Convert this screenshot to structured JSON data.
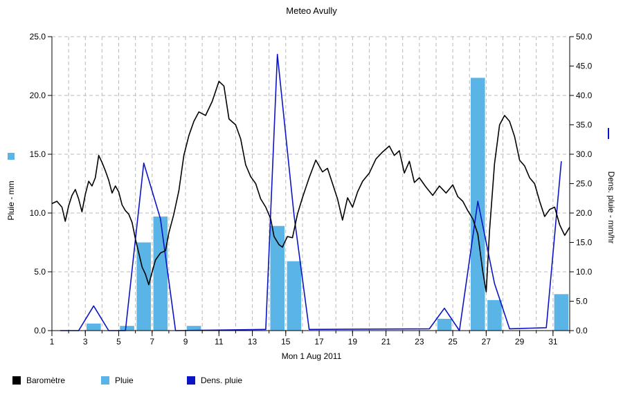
{
  "chart_data": {
    "type": "bar",
    "title": "Meteo  Avully",
    "xlabel": "Mon 1 Aug 2011",
    "ylabel": "Pluie - mm",
    "y2label": "Dens. pluie - mm/hr",
    "xlim": [
      1,
      32
    ],
    "ylim": [
      0,
      25
    ],
    "y2lim": [
      0,
      50
    ],
    "x_ticks": [
      1,
      3,
      5,
      7,
      9,
      11,
      13,
      15,
      17,
      19,
      21,
      23,
      25,
      27,
      29,
      31
    ],
    "y_ticks": [
      "0.0",
      "5.0",
      "10.0",
      "15.0",
      "20.0",
      "25.0"
    ],
    "y2_ticks": [
      "0.0",
      "5.0",
      "10.0",
      "15.0",
      "20.0",
      "25.0",
      "30.0",
      "35.0",
      "40.0",
      "45.0",
      "50.0"
    ],
    "grid": true,
    "legend_position": "bottom-left",
    "series": [
      {
        "name": "Baromètre",
        "kind": "line",
        "axis": "left",
        "color": "#000000",
        "x": [
          1.0,
          1.3,
          1.6,
          1.8,
          2.0,
          2.2,
          2.4,
          2.6,
          2.8,
          3.0,
          3.2,
          3.4,
          3.6,
          3.8,
          4.0,
          4.2,
          4.4,
          4.6,
          4.8,
          5.0,
          5.2,
          5.4,
          5.6,
          5.8,
          6.0,
          6.2,
          6.4,
          6.6,
          6.8,
          7.0,
          7.2,
          7.5,
          7.8,
          8.0,
          8.3,
          8.6,
          8.9,
          9.2,
          9.5,
          9.8,
          10.2,
          10.6,
          11.0,
          11.3,
          11.6,
          12.0,
          12.3,
          12.6,
          12.9,
          13.2,
          13.5,
          13.8,
          14.1,
          14.3,
          14.6,
          14.8,
          15.1,
          15.4,
          15.7,
          16.0,
          16.4,
          16.8,
          17.2,
          17.5,
          17.8,
          18.1,
          18.4,
          18.7,
          19.0,
          19.3,
          19.6,
          20.0,
          20.4,
          20.8,
          21.2,
          21.5,
          21.8,
          22.1,
          22.4,
          22.7,
          23.0,
          23.4,
          23.8,
          24.2,
          24.6,
          25.0,
          25.3,
          25.6,
          25.9,
          26.2,
          26.5,
          26.8,
          27.0,
          27.2,
          27.5,
          27.8,
          28.1,
          28.4,
          28.7,
          29.0,
          29.3,
          29.6,
          29.9,
          30.2,
          30.5,
          30.8,
          31.1,
          31.4,
          31.7,
          32.0
        ],
        "values": [
          10.8,
          11.0,
          10.5,
          9.3,
          10.6,
          11.5,
          12.0,
          11.2,
          10.1,
          11.6,
          12.7,
          12.3,
          13.0,
          14.9,
          14.3,
          13.6,
          12.8,
          11.7,
          12.3,
          11.8,
          10.7,
          10.2,
          9.9,
          9.2,
          7.8,
          6.6,
          5.4,
          4.8,
          3.9,
          5.0,
          6.0,
          6.6,
          6.8,
          8.3,
          9.9,
          11.9,
          14.9,
          16.6,
          17.8,
          18.6,
          18.3,
          19.5,
          21.2,
          20.8,
          18.0,
          17.5,
          16.3,
          14.1,
          13.1,
          12.5,
          11.2,
          10.5,
          9.5,
          8.0,
          7.3,
          7.1,
          8.0,
          7.9,
          9.9,
          11.3,
          13.0,
          14.5,
          13.5,
          13.8,
          12.5,
          11.2,
          9.4,
          11.3,
          10.5,
          11.8,
          12.7,
          13.4,
          14.6,
          15.2,
          15.7,
          14.9,
          15.3,
          13.4,
          14.4,
          12.6,
          13.0,
          12.2,
          11.5,
          12.3,
          11.7,
          12.4,
          11.4,
          11.0,
          10.2,
          9.5,
          8.2,
          5.0,
          3.3,
          8.5,
          14.2,
          17.5,
          18.3,
          17.8,
          16.5,
          14.5,
          14.0,
          13.0,
          12.5,
          11.0,
          9.7,
          10.3,
          10.5,
          9.0,
          8.1,
          8.8
        ]
      },
      {
        "name": "Pluie",
        "kind": "bar",
        "axis": "left",
        "color": "#5bb4e6",
        "x": [
          3.5,
          5.5,
          6.5,
          7.5,
          9.5,
          14.5,
          15.5,
          24.5,
          26.5,
          27.5,
          31.5
        ],
        "values": [
          0.6,
          0.4,
          7.5,
          9.7,
          0.4,
          8.9,
          5.9,
          1.0,
          21.5,
          2.6,
          3.1
        ]
      },
      {
        "name": "Dens. pluie",
        "kind": "line",
        "axis": "right",
        "color": "#0a14c4",
        "x": [
          1.5,
          2.6,
          3.5,
          4.4,
          5.4,
          6.5,
          7.5,
          8.4,
          13.8,
          14.5,
          15.5,
          16.4,
          23.6,
          24.5,
          25.4,
          26.5,
          27.5,
          28.4,
          30.6,
          31.5
        ],
        "values": [
          0.0,
          0.0,
          4.2,
          0.0,
          0.0,
          28.5,
          19.0,
          0.0,
          0.2,
          47.0,
          19.5,
          0.2,
          0.3,
          3.8,
          0.0,
          22.0,
          8.0,
          0.3,
          0.5,
          28.8
        ]
      }
    ]
  },
  "legend": {
    "items": [
      {
        "label": "Baromètre",
        "color": "#000000"
      },
      {
        "label": "Pluie",
        "color": "#5bb4e6"
      },
      {
        "label": "Dens. pluie",
        "color": "#0a14c4"
      }
    ]
  }
}
